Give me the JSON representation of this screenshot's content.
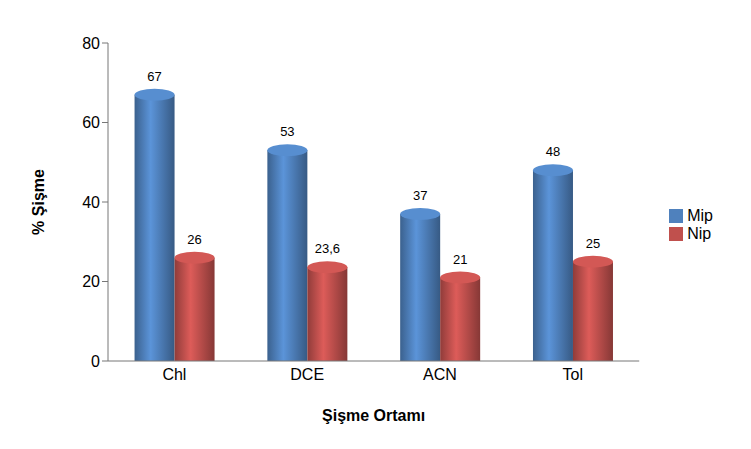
{
  "chart_data": {
    "type": "bar",
    "categories": [
      "Chl",
      "DCE",
      "ACN",
      "Tol"
    ],
    "series": [
      {
        "name": "Mip",
        "color": "#4f81bd",
        "values": [
          67,
          53,
          37,
          48
        ]
      },
      {
        "name": "Nip",
        "color": "#c0504d",
        "values": [
          26,
          23.6,
          21,
          25
        ],
        "value_labels": [
          "26",
          "23,6",
          "21",
          "25"
        ]
      }
    ],
    "x_label": "Şişme Ortamı",
    "y_label": "% Şişme",
    "ylim": [
      0,
      80
    ],
    "yticks": [
      0,
      20,
      40,
      60,
      80
    ],
    "grid": false,
    "legend": "right",
    "data_labels": true
  }
}
